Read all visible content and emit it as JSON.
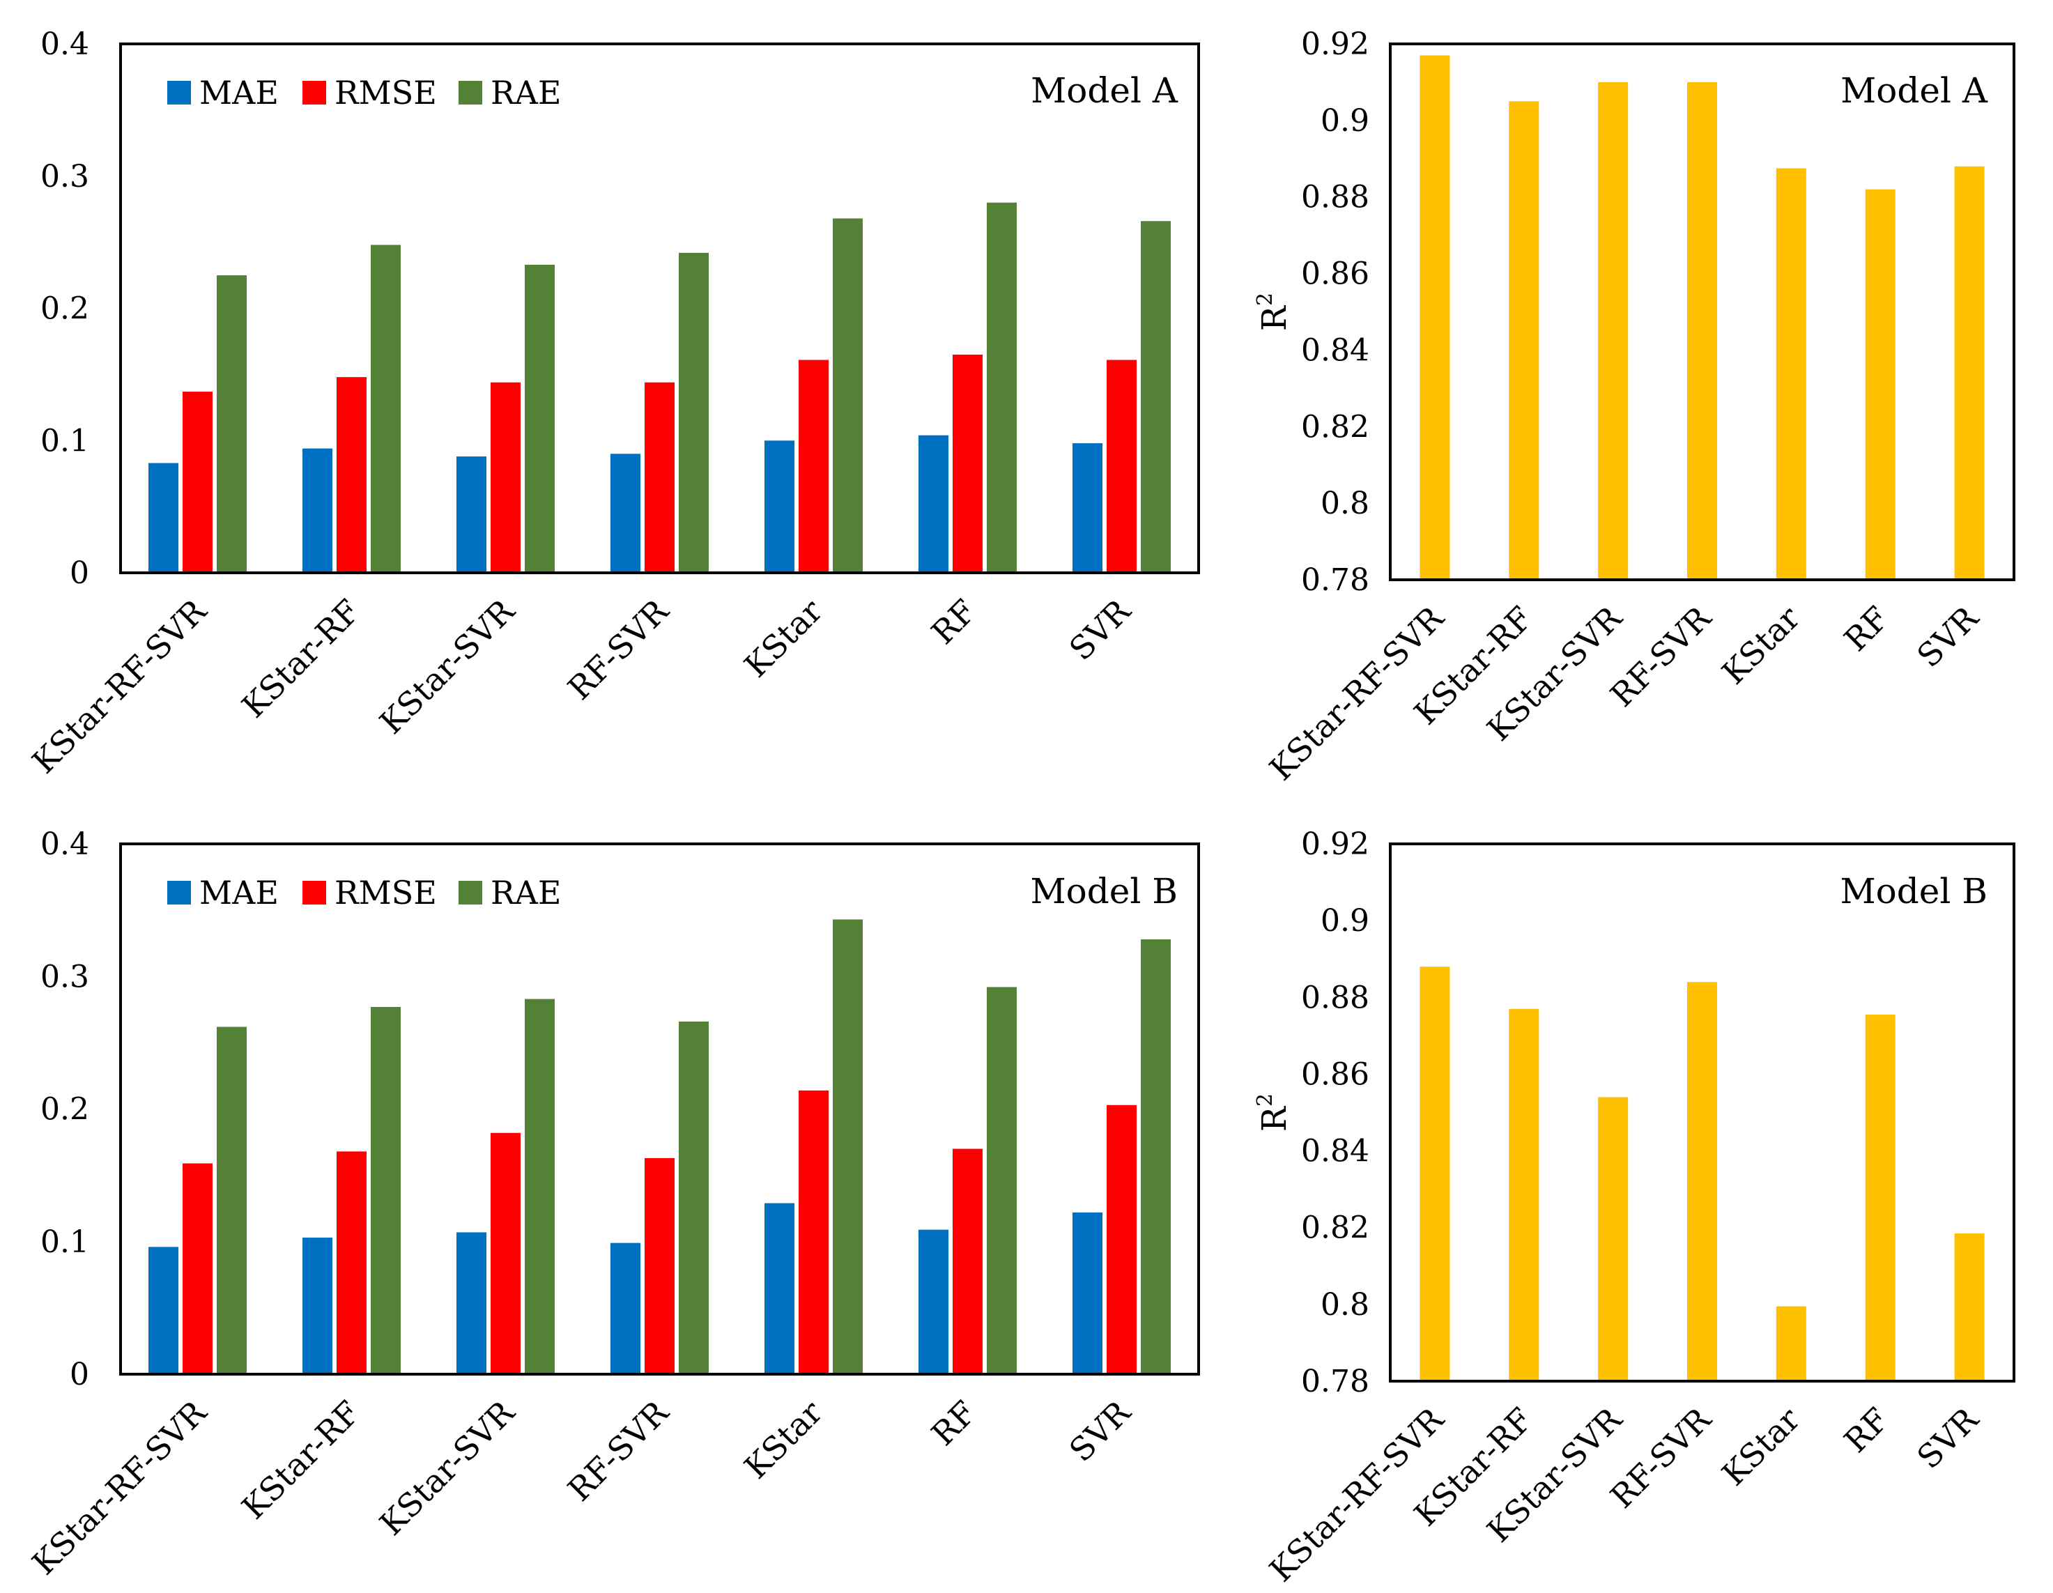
{
  "figure": {
    "colors": {
      "MAE": "#0070C0",
      "RMSE": "#FF0000",
      "RAE": "#538135",
      "R2": "#FFC000"
    }
  },
  "chart_data": [
    {
      "id": "err-a",
      "type": "bar",
      "title": "Model A",
      "ylabel": "",
      "ylim": [
        0,
        0.4
      ],
      "yticks": [
        0,
        0.1,
        0.2,
        0.3,
        0.4
      ],
      "ytick_labels": [
        "0",
        "0.1",
        "0.2",
        "0.3",
        "0.4"
      ],
      "legend": "top-left",
      "categories": [
        "KStar-RF-SVR",
        "KStar-RF",
        "KStar-SVR",
        "RF-SVR",
        "KStar",
        "RF",
        "SVR"
      ],
      "series": [
        {
          "name": "MAE",
          "color": "#0070C0",
          "values": [
            0.083,
            0.094,
            0.088,
            0.09,
            0.1,
            0.104,
            0.098
          ]
        },
        {
          "name": "RMSE",
          "color": "#FF0000",
          "values": [
            0.137,
            0.148,
            0.144,
            0.144,
            0.161,
            0.165,
            0.161
          ]
        },
        {
          "name": "RAE",
          "color": "#538135",
          "values": [
            0.225,
            0.248,
            0.233,
            0.242,
            0.268,
            0.28,
            0.266
          ]
        }
      ]
    },
    {
      "id": "r2-a",
      "type": "bar",
      "title": "Model A",
      "ylabel": "R",
      "ylabel_sup": "2",
      "ylim": [
        0.78,
        0.92
      ],
      "yticks": [
        0.78,
        0.8,
        0.82,
        0.84,
        0.86,
        0.88,
        0.9,
        0.92
      ],
      "ytick_labels": [
        "0.78",
        "0.8",
        "0.82",
        "0.84",
        "0.86",
        "0.88",
        "0.9",
        "0.92"
      ],
      "categories": [
        "KStar-RF-SVR",
        "KStar-RF",
        "KStar-SVR",
        "RF-SVR",
        "KStar",
        "RF",
        "SVR"
      ],
      "series": [
        {
          "name": "R2",
          "color": "#FFC000",
          "values": [
            0.917,
            0.905,
            0.91,
            0.91,
            0.8875,
            0.882,
            0.888
          ]
        }
      ]
    },
    {
      "id": "err-b",
      "type": "bar",
      "title": "Model B",
      "ylabel": "",
      "ylim": [
        0,
        0.4
      ],
      "yticks": [
        0,
        0.1,
        0.2,
        0.3,
        0.4
      ],
      "ytick_labels": [
        "0",
        "0.1",
        "0.2",
        "0.3",
        "0.4"
      ],
      "legend": "top-left",
      "categories": [
        "KStar-RF-SVR",
        "KStar-RF",
        "KStar-SVR",
        "RF-SVR",
        "KStar",
        "RF",
        "SVR"
      ],
      "series": [
        {
          "name": "MAE",
          "color": "#0070C0",
          "values": [
            0.096,
            0.103,
            0.107,
            0.099,
            0.129,
            0.109,
            0.122
          ]
        },
        {
          "name": "RMSE",
          "color": "#FF0000",
          "values": [
            0.159,
            0.168,
            0.182,
            0.163,
            0.214,
            0.17,
            0.203
          ]
        },
        {
          "name": "RAE",
          "color": "#538135",
          "values": [
            0.262,
            0.277,
            0.283,
            0.266,
            0.343,
            0.292,
            0.328
          ]
        }
      ]
    },
    {
      "id": "r2-b",
      "type": "bar",
      "title": "Model B",
      "ylabel": "R",
      "ylabel_sup": "2",
      "ylim": [
        0.78,
        0.92
      ],
      "yticks": [
        0.78,
        0.8,
        0.82,
        0.84,
        0.86,
        0.88,
        0.9,
        0.92
      ],
      "ytick_labels": [
        "0.78",
        "0.8",
        "0.82",
        "0.84",
        "0.86",
        "0.88",
        "0.9",
        "0.92"
      ],
      "categories": [
        "KStar-RF-SVR",
        "KStar-RF",
        "KStar-SVR",
        "RF-SVR",
        "KStar",
        "RF",
        "SVR"
      ],
      "series": [
        {
          "name": "R2",
          "color": "#FFC000",
          "values": [
            0.888,
            0.877,
            0.854,
            0.884,
            0.7995,
            0.8755,
            0.8185
          ]
        }
      ]
    }
  ]
}
